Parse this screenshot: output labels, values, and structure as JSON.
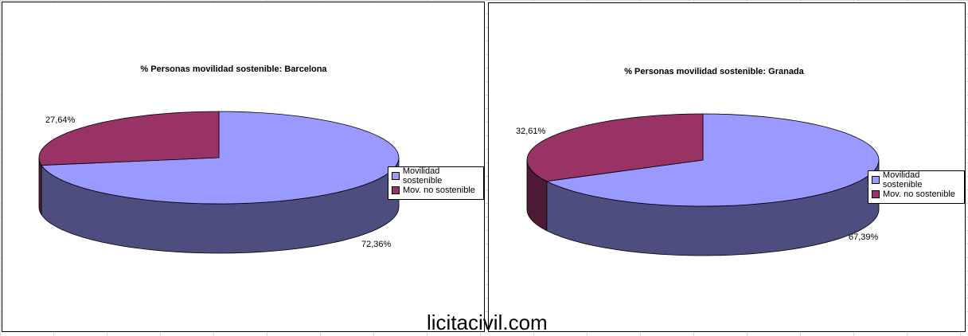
{
  "chart_data": [
    {
      "type": "pie",
      "title": "% Personas movilidad sostenible: Barcelona",
      "categories": [
        "Movilidad sostenible",
        "Mov. no sostenible"
      ],
      "values": [
        72.36,
        27.64
      ],
      "labels": [
        "72,36%",
        "27,64%"
      ],
      "colors": [
        "#9999ff",
        "#993366"
      ],
      "legend": "right"
    },
    {
      "type": "pie",
      "title": "% Personas movilidad sostenible: Granada",
      "categories": [
        "Movilidad sostenible",
        "Mov. no sostenible"
      ],
      "values": [
        67.39,
        32.61
      ],
      "labels": [
        "67,39%",
        "32,61%"
      ],
      "colors": [
        "#9999ff",
        "#993366"
      ],
      "legend": "right"
    }
  ],
  "watermark": "licitacivil.com"
}
